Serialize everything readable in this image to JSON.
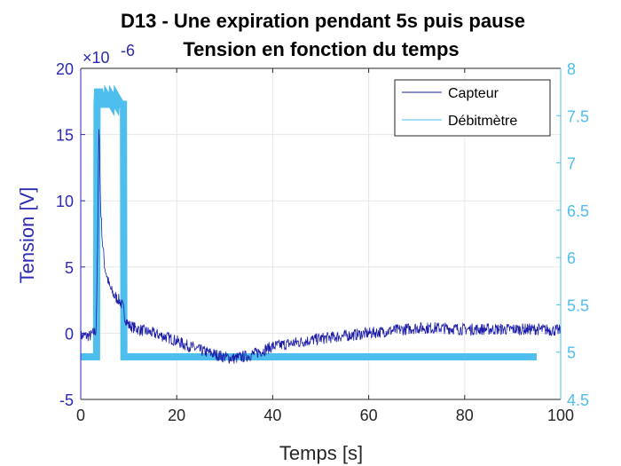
{
  "chart_data": {
    "type": "line",
    "title": "D13 - Une expiration pendant 5s puis pause",
    "subtitle": "Tension en fonction du temps",
    "xlabel": "Temps [s]",
    "ylabel": "Tension [V]",
    "xlim": [
      0,
      100
    ],
    "ylim_left": [
      -5,
      20
    ],
    "ylim_right": [
      4.5,
      8
    ],
    "left_exponent_label": "×10",
    "left_exponent_power": "-6",
    "x_ticks": [
      "0",
      "20",
      "40",
      "60",
      "80",
      "100"
    ],
    "y_left_ticks": [
      "-5",
      "0",
      "5",
      "10",
      "15",
      "20"
    ],
    "y_right_ticks": [
      "4.5",
      "5",
      "5.5",
      "6",
      "6.5",
      "7",
      "7.5",
      "8"
    ],
    "grid": true,
    "legend_position": "top-right",
    "colors": {
      "left_axis": "#2a2ab5",
      "right_axis": "#4dbeee",
      "capteur": "#1b1ba8",
      "debitmetre": "#4dbeee",
      "grid": "#e6e6e6"
    },
    "series": [
      {
        "name": "Capteur",
        "axis": "left",
        "x": [
          0,
          2,
          3.2,
          3.5,
          3.8,
          4.1,
          4.5,
          5,
          6,
          7,
          8,
          8.8,
          9.2,
          10,
          12,
          15,
          18,
          20,
          22,
          25,
          28,
          30,
          32,
          35,
          38,
          40,
          45,
          50,
          55,
          60,
          65,
          70,
          75,
          80,
          85,
          90,
          95,
          100
        ],
        "y": [
          -0.2,
          -0.2,
          0.2,
          6,
          16.5,
          10,
          7,
          5,
          3.5,
          2.8,
          2.5,
          2,
          1.2,
          0.6,
          0.3,
          0,
          -0.3,
          -0.6,
          -0.9,
          -1.3,
          -1.6,
          -1.8,
          -1.9,
          -1.7,
          -1.3,
          -1,
          -0.7,
          -0.4,
          -0.2,
          0,
          0.2,
          0.4,
          0.4,
          0.3,
          0.3,
          0.3,
          0.3,
          0.2
        ]
      },
      {
        "name": "Débitmètre",
        "axis": "right",
        "x": [
          0,
          3.3,
          3.4,
          3.5,
          4,
          4.4,
          4.5,
          5.4,
          5.5,
          6.4,
          6.5,
          7.4,
          7.5,
          8.4,
          8.5,
          8.9,
          9,
          95
        ],
        "y": [
          4.95,
          4.95,
          7.62,
          7.75,
          7.75,
          7.62,
          7.62,
          7.62,
          7.7,
          7.62,
          7.7,
          7.62,
          7.7,
          7.62,
          7.62,
          7.62,
          4.95,
          4.95
        ]
      }
    ]
  }
}
